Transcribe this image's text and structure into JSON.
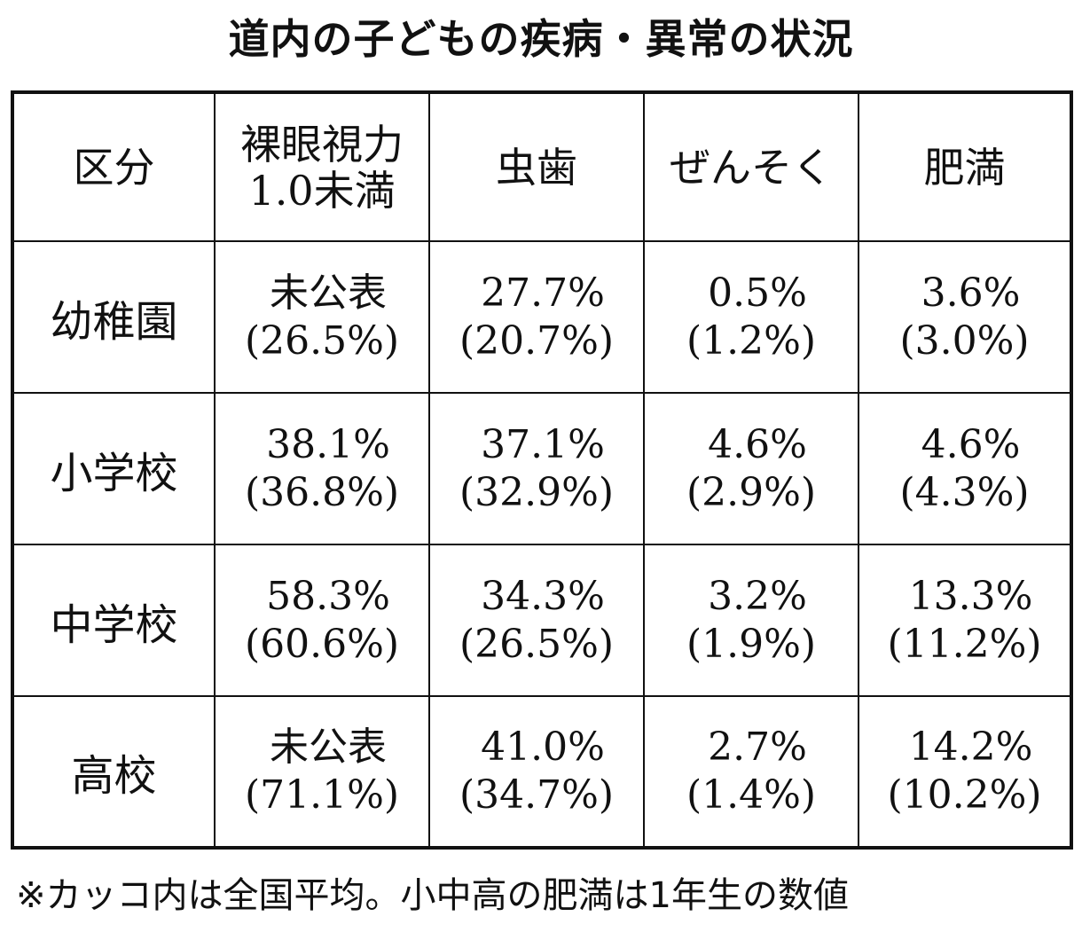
{
  "title": "道内の子どもの疾病・異常の状況",
  "table": {
    "headers": {
      "category": "区分",
      "vision_line1": "裸眼視力",
      "vision_line2": "1.0未満",
      "cavities": "虫歯",
      "asthma": "ぜんそく",
      "obesity": "肥満"
    },
    "rows": [
      {
        "label": "幼稚園",
        "vision": {
          "value": "未公表",
          "national": "(26.5%)"
        },
        "cavities": {
          "value": "27.7%",
          "national": "(20.7%)"
        },
        "asthma": {
          "value": "0.5%",
          "national": "(1.2%)"
        },
        "obesity": {
          "value": "3.6%",
          "national": "(3.0%)"
        }
      },
      {
        "label": "小学校",
        "vision": {
          "value": "38.1%",
          "national": "(36.8%)"
        },
        "cavities": {
          "value": "37.1%",
          "national": "(32.9%)"
        },
        "asthma": {
          "value": "4.6%",
          "national": "(2.9%)"
        },
        "obesity": {
          "value": "4.6%",
          "national": "(4.3%)"
        }
      },
      {
        "label": "中学校",
        "vision": {
          "value": "58.3%",
          "national": "(60.6%)"
        },
        "cavities": {
          "value": "34.3%",
          "national": "(26.5%)"
        },
        "asthma": {
          "value": "3.2%",
          "national": "(1.9%)"
        },
        "obesity": {
          "value": "13.3%",
          "national": "(11.2%)"
        }
      },
      {
        "label": "高校",
        "vision": {
          "value": "未公表",
          "national": "(71.1%)"
        },
        "cavities": {
          "value": "41.0%",
          "national": "(34.7%)"
        },
        "asthma": {
          "value": "2.7%",
          "national": "(1.4%)"
        },
        "obesity": {
          "value": "14.2%",
          "national": "(10.2%)"
        }
      }
    ]
  },
  "footnote": "※カッコ内は全国平均。小中高の肥満は1年生の数値"
}
